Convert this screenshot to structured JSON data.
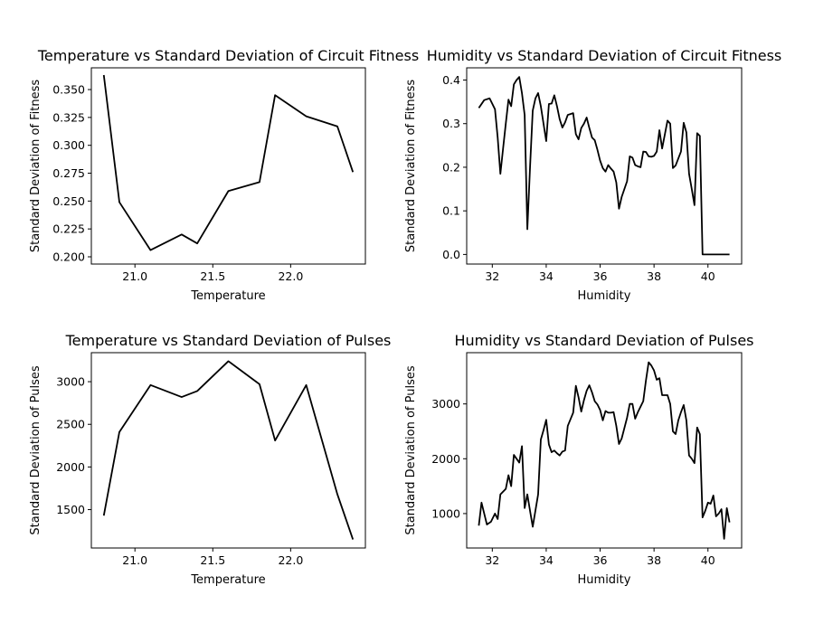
{
  "chart_data": [
    {
      "type": "line",
      "title": "Temperature vs Standard Deviation of Circuit Fitness",
      "xlabel": "Temperature",
      "ylabel": "Standard Deviation of Fitness",
      "xlim": [
        20.72,
        22.48
      ],
      "ylim": [
        0.1935,
        0.3695
      ],
      "xticks": [
        21.0,
        21.5,
        22.0
      ],
      "xtick_labels": [
        "21.0",
        "21.5",
        "22.0"
      ],
      "yticks": [
        0.2,
        0.225,
        0.25,
        0.275,
        0.3,
        0.325,
        0.35
      ],
      "ytick_labels": [
        "0.200",
        "0.225",
        "0.250",
        "0.275",
        "0.300",
        "0.325",
        "0.350"
      ],
      "grid": false,
      "color": "#000000",
      "x": [
        20.8,
        20.9,
        21.1,
        21.3,
        21.4,
        21.6,
        21.8,
        21.9,
        22.1,
        22.3,
        22.4
      ],
      "y": [
        0.363,
        0.249,
        0.206,
        0.22,
        0.212,
        0.259,
        0.267,
        0.345,
        0.326,
        0.317,
        0.276
      ]
    },
    {
      "type": "line",
      "title": "Humidity vs Standard Deviation of Circuit Fitness",
      "xlabel": "Humidity",
      "ylabel": "Standard Deviation of Fitness",
      "xlim": [
        31.05,
        41.25
      ],
      "ylim": [
        -0.022,
        0.428
      ],
      "xticks": [
        32,
        34,
        36,
        38,
        40
      ],
      "xtick_labels": [
        "32",
        "34",
        "36",
        "38",
        "40"
      ],
      "yticks": [
        0.0,
        0.1,
        0.2,
        0.3,
        0.4
      ],
      "ytick_labels": [
        "0.0",
        "0.1",
        "0.2",
        "0.3",
        "0.4"
      ],
      "grid": false,
      "color": "#000000",
      "x": [
        31.5,
        31.7,
        31.9,
        32.1,
        32.2,
        32.3,
        32.4,
        32.5,
        32.6,
        32.7,
        32.8,
        32.9,
        33.0,
        33.1,
        33.2,
        33.3,
        33.4,
        33.5,
        33.6,
        33.7,
        33.8,
        33.9,
        34.0,
        34.1,
        34.2,
        34.3,
        34.4,
        34.5,
        34.6,
        34.7,
        34.8,
        34.9,
        35.0,
        35.1,
        35.2,
        35.3,
        35.4,
        35.5,
        35.6,
        35.7,
        35.8,
        35.9,
        36.0,
        36.1,
        36.2,
        36.3,
        36.4,
        36.5,
        36.6,
        36.7,
        36.8,
        36.9,
        37.0,
        37.1,
        37.2,
        37.3,
        37.4,
        37.5,
        37.6,
        37.7,
        37.8,
        37.9,
        38.0,
        38.1,
        38.2,
        38.3,
        38.4,
        38.5,
        38.6,
        38.7,
        38.8,
        38.9,
        39.0,
        39.1,
        39.2,
        39.3,
        39.4,
        39.5,
        39.6,
        39.7,
        39.8,
        40.0,
        40.2,
        40.5,
        40.8
      ],
      "y": [
        0.336,
        0.354,
        0.358,
        0.333,
        0.268,
        0.185,
        0.243,
        0.3,
        0.355,
        0.34,
        0.39,
        0.4,
        0.407,
        0.37,
        0.32,
        0.058,
        0.2,
        0.33,
        0.358,
        0.37,
        0.34,
        0.3,
        0.26,
        0.345,
        0.346,
        0.365,
        0.34,
        0.31,
        0.291,
        0.303,
        0.32,
        0.322,
        0.324,
        0.276,
        0.264,
        0.29,
        0.3,
        0.314,
        0.29,
        0.268,
        0.262,
        0.24,
        0.215,
        0.198,
        0.19,
        0.205,
        0.197,
        0.19,
        0.165,
        0.105,
        0.132,
        0.15,
        0.168,
        0.225,
        0.222,
        0.205,
        0.202,
        0.2,
        0.236,
        0.235,
        0.225,
        0.224,
        0.226,
        0.236,
        0.285,
        0.243,
        0.275,
        0.307,
        0.3,
        0.198,
        0.204,
        0.22,
        0.236,
        0.302,
        0.28,
        0.185,
        0.15,
        0.113,
        0.278,
        0.272,
        0.0,
        0.0,
        0.0,
        0.0,
        0.0
      ]
    },
    {
      "type": "line",
      "title": "Temperature vs Standard Deviation of Pulses",
      "xlabel": "Temperature",
      "ylabel": "Standard Deviation of Pulses",
      "xlim": [
        20.72,
        22.48
      ],
      "ylim": [
        1050,
        3340
      ],
      "xticks": [
        21.0,
        21.5,
        22.0
      ],
      "xtick_labels": [
        "21.0",
        "21.5",
        "22.0"
      ],
      "yticks": [
        1500,
        2000,
        2500,
        3000
      ],
      "ytick_labels": [
        "1500",
        "2000",
        "2500",
        "3000"
      ],
      "grid": false,
      "color": "#000000",
      "x": [
        20.8,
        20.9,
        21.1,
        21.3,
        21.4,
        21.6,
        21.8,
        21.9,
        22.1,
        22.3,
        22.4
      ],
      "y": [
        1430,
        2410,
        2960,
        2820,
        2890,
        3240,
        2970,
        2310,
        2960,
        1680,
        1150
      ]
    },
    {
      "type": "line",
      "title": "Humidity vs Standard Deviation of Pulses",
      "xlabel": "Humidity",
      "ylabel": "Standard Deviation of Pulses",
      "xlim": [
        31.05,
        41.25
      ],
      "ylim": [
        372,
        3935
      ],
      "xticks": [
        32,
        34,
        36,
        38,
        40
      ],
      "xtick_labels": [
        "32",
        "34",
        "36",
        "38",
        "40"
      ],
      "yticks": [
        1000,
        2000,
        3000
      ],
      "ytick_labels": [
        "1000",
        "2000",
        "3000"
      ],
      "grid": false,
      "color": "#000000",
      "x": [
        31.5,
        31.6,
        31.8,
        31.95,
        32.1,
        32.2,
        32.3,
        32.5,
        32.6,
        32.7,
        32.8,
        32.9,
        33.0,
        33.1,
        33.2,
        33.3,
        33.4,
        33.5,
        33.7,
        33.8,
        33.9,
        34.0,
        34.1,
        34.2,
        34.3,
        34.4,
        34.5,
        34.6,
        34.7,
        34.8,
        34.9,
        35.0,
        35.1,
        35.2,
        35.3,
        35.4,
        35.5,
        35.6,
        35.7,
        35.8,
        35.9,
        36.0,
        36.1,
        36.2,
        36.3,
        36.4,
        36.5,
        36.6,
        36.7,
        36.8,
        36.9,
        37.0,
        37.1,
        37.2,
        37.3,
        37.4,
        37.5,
        37.6,
        37.7,
        37.8,
        37.9,
        38.0,
        38.1,
        38.2,
        38.3,
        38.4,
        38.5,
        38.6,
        38.7,
        38.8,
        38.9,
        39.0,
        39.1,
        39.2,
        39.3,
        39.4,
        39.5,
        39.6,
        39.7,
        39.8,
        39.9,
        40.0,
        40.1,
        40.2,
        40.3,
        40.4,
        40.5,
        40.6,
        40.7,
        40.8
      ],
      "y": [
        780,
        1200,
        800,
        850,
        1000,
        900,
        1350,
        1450,
        1700,
        1500,
        2070,
        2000,
        1930,
        2230,
        1100,
        1350,
        1050,
        760,
        1350,
        2350,
        2520,
        2710,
        2260,
        2120,
        2150,
        2100,
        2060,
        2130,
        2150,
        2600,
        2720,
        2840,
        3330,
        3120,
        2860,
        3070,
        3240,
        3340,
        3210,
        3050,
        2990,
        2890,
        2700,
        2870,
        2840,
        2840,
        2850,
        2600,
        2270,
        2370,
        2560,
        2750,
        3000,
        3000,
        2730,
        2850,
        2950,
        3050,
        3430,
        3760,
        3700,
        3610,
        3440,
        3470,
        3160,
        3160,
        3160,
        3000,
        2500,
        2450,
        2700,
        2850,
        2980,
        2700,
        2060,
        2000,
        1920,
        2570,
        2450,
        930,
        1050,
        1200,
        1180,
        1330,
        950,
        1000,
        1080,
        540,
        1100,
        840
      ]
    }
  ]
}
